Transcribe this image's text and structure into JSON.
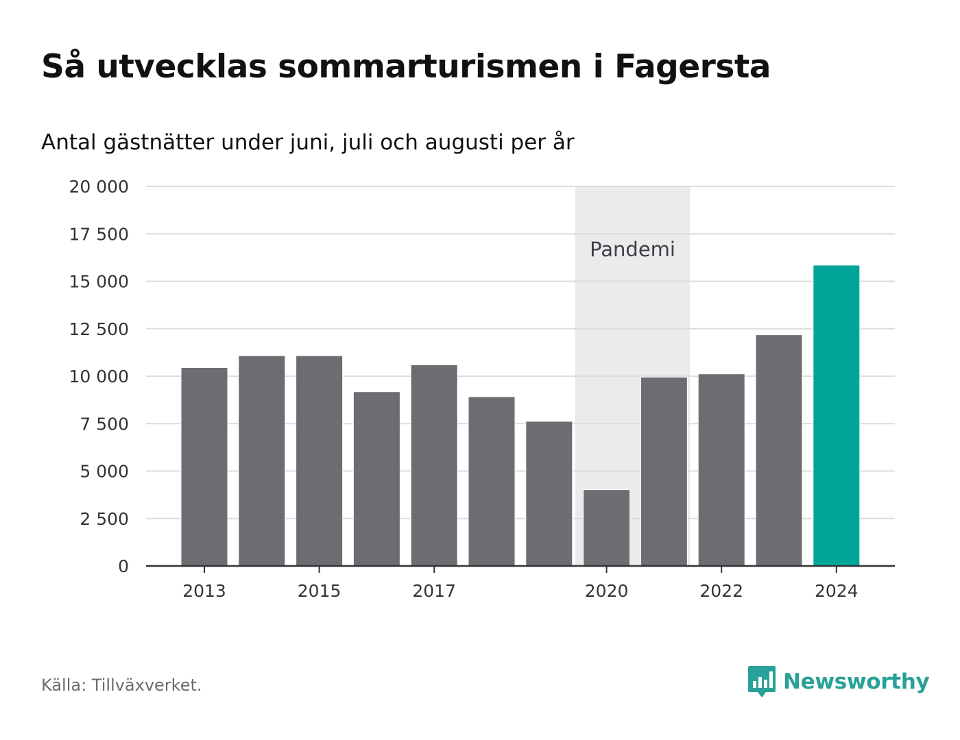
{
  "header": {
    "title": "Så utvecklas sommarturismen i Fagersta",
    "subtitle": "Antal gästnätter under juni, juli och augusti per år"
  },
  "footer": {
    "source": "Källa: Tillväxverket.",
    "brand": "Newsworthy"
  },
  "colors": {
    "bar": "#6d6c72",
    "highlight": "#00a598",
    "band": "#ebebeb",
    "grid": "#dcdcdc",
    "axis": "#333333",
    "brand": "#2aa198"
  },
  "chart_data": {
    "type": "bar",
    "title": "Så utvecklas sommarturismen i Fagersta",
    "subtitle": "Antal gästnätter under juni, juli och augusti per år",
    "xlabel": "",
    "ylabel": "",
    "categories": [
      "2013",
      "2014",
      "2015",
      "2016",
      "2017",
      "2018",
      "2019",
      "2020",
      "2021",
      "2022",
      "2023",
      "2024"
    ],
    "values": [
      10450,
      11080,
      11080,
      9180,
      10600,
      8920,
      7620,
      4020,
      9950,
      10120,
      12180,
      15850
    ],
    "highlight_category": "2024",
    "x_tick_labels": [
      "2013",
      "2015",
      "2017",
      "2020",
      "2022",
      "2024"
    ],
    "ylim": [
      0,
      20000
    ],
    "y_ticks": [
      0,
      2500,
      5000,
      7500,
      10000,
      12500,
      15000,
      17500,
      20000
    ],
    "y_tick_labels": [
      "0",
      "2 500",
      "5 000",
      "7 500",
      "10 000",
      "12 500",
      "15 000",
      "17 500",
      "20 000"
    ],
    "grid": true,
    "legend": "none",
    "annotation": {
      "label": "Pandemi",
      "start": "2020",
      "end": "2021"
    }
  }
}
